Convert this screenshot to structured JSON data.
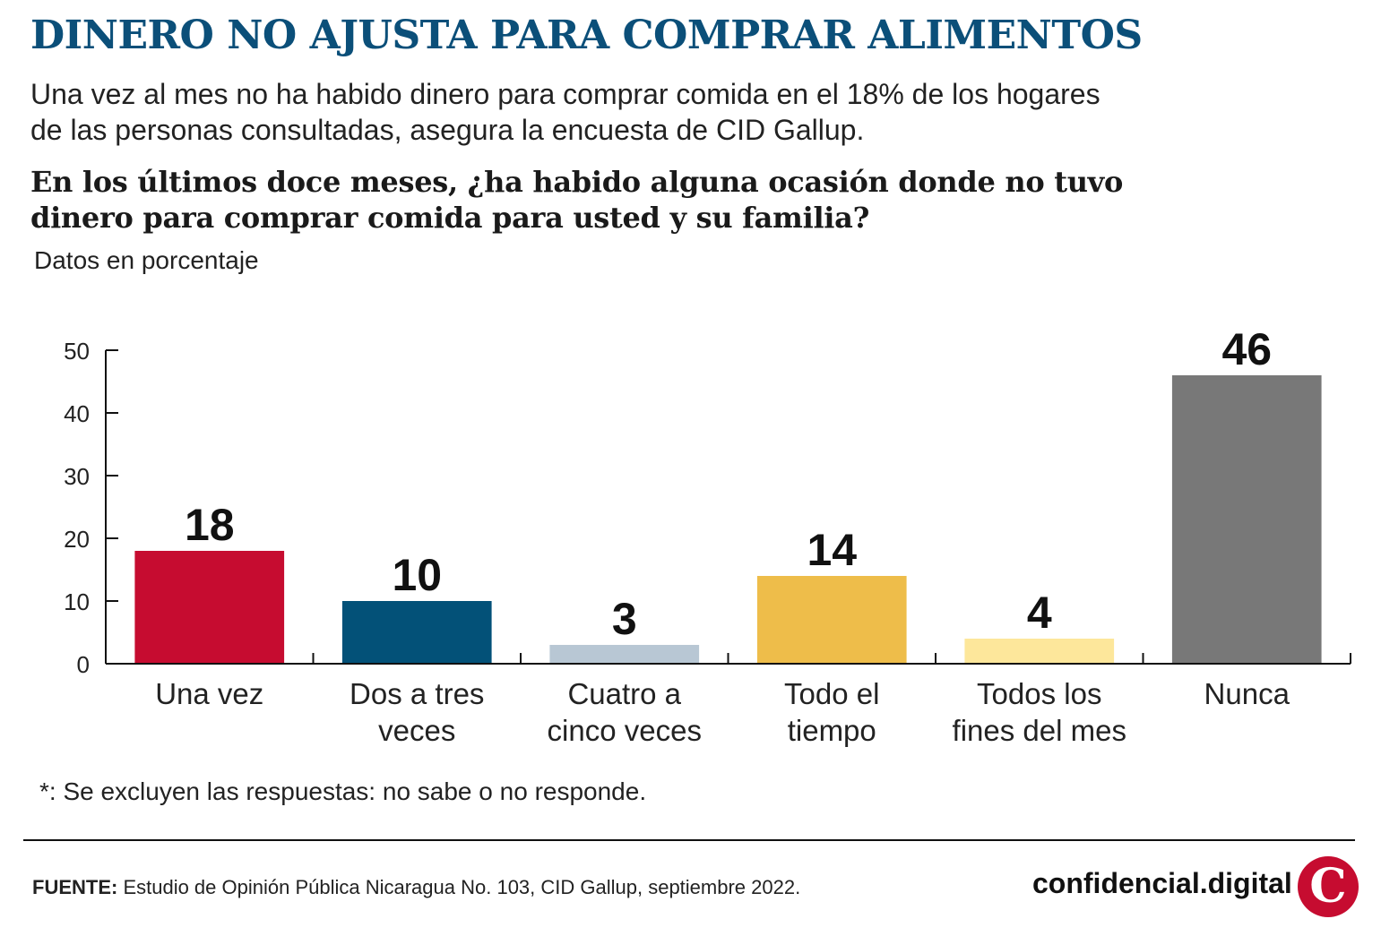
{
  "header": {
    "title": "DINERO NO AJUSTA PARA COMPRAR ALIMENTOS",
    "subtitle": "Una vez al mes no ha habido dinero para comprar comida en el 18% de los hogares de las personas consultadas, asegura la encuesta de CID Gallup.",
    "question": "En los últimos doce meses, ¿ha habido alguna ocasión donde no tuvo dinero para comprar comida para usted y su familia?",
    "units": "Datos en porcentaje"
  },
  "chart_data": {
    "type": "bar",
    "categories": [
      [
        "Una vez"
      ],
      [
        "Dos a tres",
        "veces"
      ],
      [
        "Cuatro a",
        "cinco veces"
      ],
      [
        "Todo el",
        "tiempo"
      ],
      [
        "Todos los",
        "fines del mes"
      ],
      [
        "Nunca"
      ]
    ],
    "values": [
      18,
      10,
      3,
      14,
      4,
      46
    ],
    "value_labels": [
      "18",
      "10",
      "3",
      "14",
      "4",
      "46"
    ],
    "colors": [
      "#c60c30",
      "#035178",
      "#b8c7d4",
      "#eebd4a",
      "#fde79b",
      "#787878"
    ],
    "ylim": [
      0,
      50
    ],
    "yticks": [
      "0",
      "10",
      "20",
      "30",
      "40",
      "50"
    ],
    "grid": false
  },
  "footer": {
    "footnote": "*: Se excluyen las respuestas: no sabe o no responde.",
    "source_label": "FUENTE:",
    "source_text": " Estudio de Opinión Pública Nicaragua No. 103, CID Gallup, septiembre 2022.",
    "brand": "confidencial.digital",
    "logo_letter": "C",
    "logo_color": "#c60c30"
  }
}
